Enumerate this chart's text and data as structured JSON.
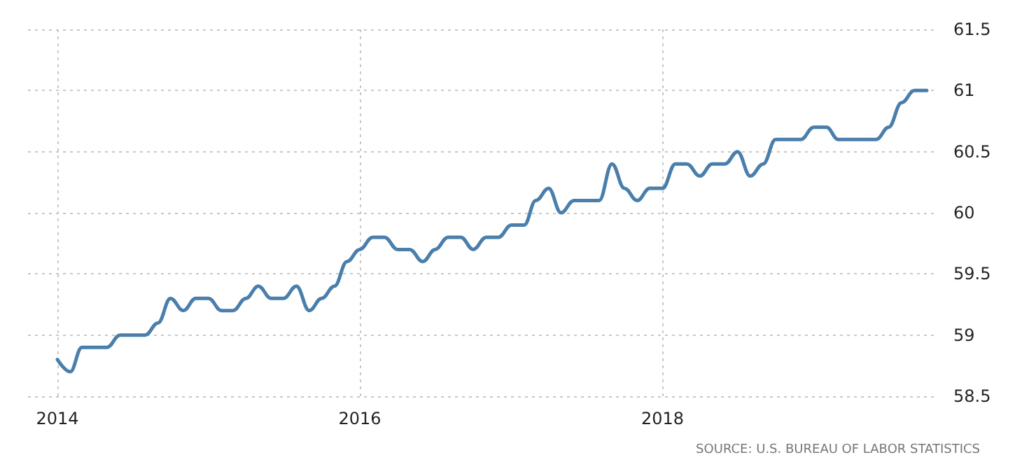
{
  "chart_data": {
    "type": "line",
    "x": [
      "2014-01",
      "2014-02",
      "2014-03",
      "2014-04",
      "2014-05",
      "2014-06",
      "2014-07",
      "2014-08",
      "2014-09",
      "2014-10",
      "2014-11",
      "2014-12",
      "2015-01",
      "2015-02",
      "2015-03",
      "2015-04",
      "2015-05",
      "2015-06",
      "2015-07",
      "2015-08",
      "2015-09",
      "2015-10",
      "2015-11",
      "2015-12",
      "2016-01",
      "2016-02",
      "2016-03",
      "2016-04",
      "2016-05",
      "2016-06",
      "2016-07",
      "2016-08",
      "2016-09",
      "2016-10",
      "2016-11",
      "2016-12",
      "2017-01",
      "2017-02",
      "2017-03",
      "2017-04",
      "2017-05",
      "2017-06",
      "2017-07",
      "2017-08",
      "2017-09",
      "2017-10",
      "2017-11",
      "2017-12",
      "2018-01",
      "2018-02",
      "2018-03",
      "2018-04",
      "2018-05",
      "2018-06",
      "2018-07",
      "2018-08",
      "2018-09",
      "2018-10",
      "2018-11",
      "2018-12",
      "2019-01",
      "2019-02",
      "2019-03",
      "2019-04",
      "2019-05",
      "2019-06",
      "2019-07",
      "2019-08",
      "2019-09",
      "2019-10"
    ],
    "series": [
      {
        "color": "#4a7eab",
        "values": [
          58.8,
          58.7,
          58.9,
          58.9,
          58.9,
          59.0,
          59.0,
          59.0,
          59.1,
          59.3,
          59.2,
          59.3,
          59.3,
          59.2,
          59.2,
          59.3,
          59.4,
          59.3,
          59.3,
          59.4,
          59.2,
          59.3,
          59.4,
          59.6,
          59.7,
          59.8,
          59.8,
          59.7,
          59.7,
          59.6,
          59.7,
          59.8,
          59.8,
          59.7,
          59.8,
          59.8,
          59.9,
          59.9,
          60.1,
          60.2,
          60.0,
          60.1,
          60.1,
          60.1,
          60.4,
          60.2,
          60.1,
          60.2,
          60.2,
          60.4,
          60.4,
          60.3,
          60.4,
          60.4,
          60.5,
          60.3,
          60.4,
          60.6,
          60.6,
          60.6,
          60.7,
          60.7,
          60.6,
          60.6,
          60.6,
          60.6,
          60.7,
          60.9,
          61.0,
          61.0
        ]
      }
    ],
    "xlim": [
      "2013-10-22",
      "2019-10-18"
    ],
    "xticks": [
      {
        "value": "2014-01-01",
        "label": "2014"
      },
      {
        "value": "2016-01-01",
        "label": "2016"
      },
      {
        "value": "2018-01-01",
        "label": "2018"
      }
    ],
    "ylim": [
      58.5,
      61.5
    ],
    "yticks": [
      58.5,
      59,
      59.5,
      60,
      60.5,
      61,
      61.5
    ],
    "grid": true,
    "line_style": "solid",
    "marker": "none",
    "annotations": [
      "SOURCE: U.S. BUREAU OF LABOR STATISTICS"
    ]
  }
}
